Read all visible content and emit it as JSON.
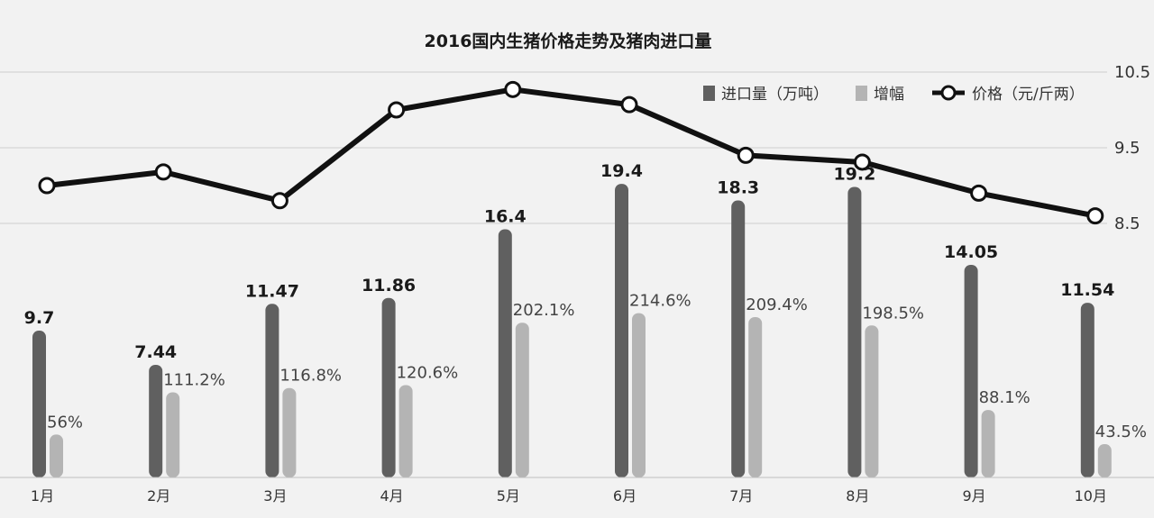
{
  "chart_data": {
    "type": "bar",
    "title": "2016国内生猪价格走势及猪肉进口量",
    "categories": [
      "1月",
      "2月",
      "3月",
      "4月",
      "5月",
      "6月",
      "7月",
      "8月",
      "9月",
      "10月"
    ],
    "series": [
      {
        "name": "进口量（万吨）",
        "kind": "bar",
        "color": "#606060",
        "values": [
          9.7,
          7.44,
          11.47,
          11.86,
          16.4,
          19.4,
          18.3,
          19.2,
          14.05,
          11.54
        ],
        "labels": [
          "9.7",
          "7.44",
          "11.47",
          "11.86",
          "16.4",
          "19.4",
          "18.3",
          "19.2",
          "14.05",
          "11.54"
        ]
      },
      {
        "name": "增幅",
        "kind": "bar",
        "color": "#b4b4b4",
        "values": [
          56,
          111.2,
          116.8,
          120.6,
          202.1,
          214.6,
          209.4,
          198.5,
          88.1,
          43.5
        ],
        "labels": [
          "56%",
          "111.2%",
          "116.8%",
          "120.6%",
          "202.1%",
          "214.6%",
          "209.4%",
          "198.5%",
          "88.1%",
          "43.5%"
        ]
      },
      {
        "name": "价格（元/斤两）",
        "kind": "line",
        "axis": "right",
        "color": "#111111",
        "values": [
          9.0,
          9.18,
          8.8,
          10.0,
          10.27,
          10.07,
          9.4,
          9.31,
          8.9,
          8.6
        ]
      }
    ],
    "right_axis": {
      "ticks": [
        "10.5",
        "9.5",
        "8.5"
      ],
      "tick_values": [
        10.5,
        9.5,
        8.5
      ],
      "ylim": [
        8.5,
        10.5
      ]
    },
    "legend_position": "top-right",
    "grid": true
  }
}
